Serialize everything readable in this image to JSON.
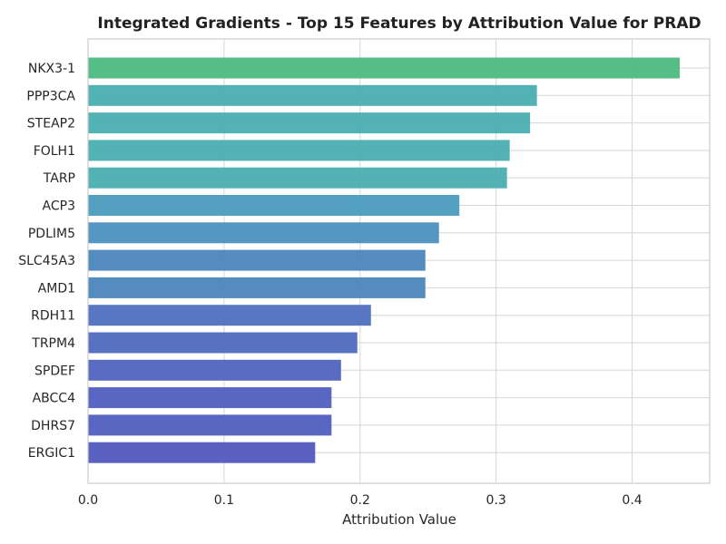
{
  "chart_data": {
    "type": "bar",
    "orientation": "horizontal",
    "title": "Integrated Gradients - Top 15 Features by Attribution Value for PRAD",
    "xlabel": "Attribution Value",
    "ylabel": "",
    "xlim": [
      0.0,
      0.457
    ],
    "x_ticks": [
      "0.0",
      "0.1",
      "0.2",
      "0.3",
      "0.4"
    ],
    "grid": true,
    "legend": "none",
    "categories": [
      "NKX3-1",
      "PPP3CA",
      "STEAP2",
      "FOLH1",
      "TARP",
      "ACP3",
      "PDLIM5",
      "SLC45A3",
      "AMD1",
      "RDH11",
      "TRPM4",
      "SPDEF",
      "ABCC4",
      "DHRS7",
      "ERGIC1"
    ],
    "values": [
      0.435,
      0.33,
      0.325,
      0.31,
      0.308,
      0.273,
      0.258,
      0.248,
      0.248,
      0.208,
      0.198,
      0.186,
      0.179,
      0.179,
      0.167
    ],
    "colors": [
      "#4cba7f",
      "#4aaeaf",
      "#4aaeaf",
      "#4aaeaf",
      "#4aaeaf",
      "#4a9bbd",
      "#4c90c0",
      "#4c86bd",
      "#4c86bd",
      "#4f6fbf",
      "#4f6abf",
      "#5064bf",
      "#515fbf",
      "#515fbf",
      "#5258be"
    ]
  }
}
